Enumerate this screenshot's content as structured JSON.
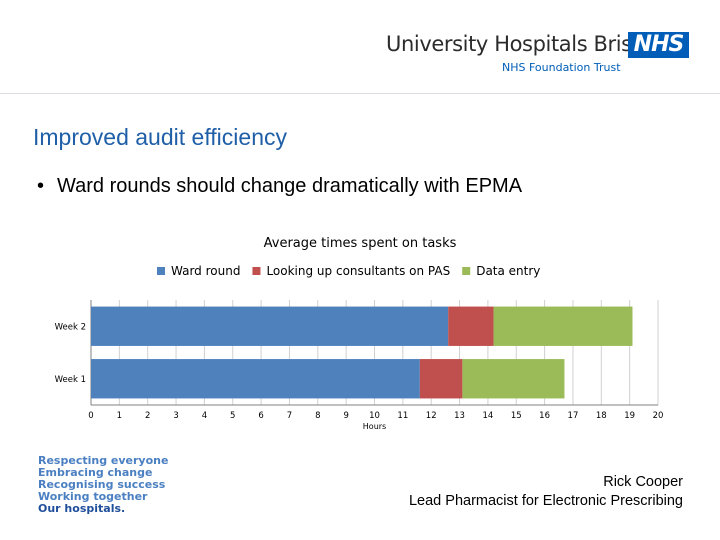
{
  "header": {
    "org_name": "University Hospitals Bristol",
    "nhs_logo": "NHS",
    "org_subtitle": "NHS Foundation Trust"
  },
  "slide": {
    "title": "Improved audit efficiency",
    "bullet": "Ward rounds should change dramatically with EPMA"
  },
  "colors": {
    "title_blue": "#1f5fa8",
    "nhs_blue": "#005eb8",
    "series_blue": "#4f81bd",
    "series_red": "#c0504d",
    "series_green": "#9bbb59"
  },
  "chart_data": {
    "type": "bar",
    "orientation": "horizontal",
    "stacked": true,
    "title": "Average times spent on tasks",
    "xlabel": "Hours",
    "ylabel": "",
    "xlim": [
      0,
      20
    ],
    "x_ticks": [
      0,
      1,
      2,
      3,
      4,
      5,
      6,
      7,
      8,
      9,
      10,
      11,
      12,
      13,
      14,
      15,
      16,
      17,
      18,
      19,
      20
    ],
    "categories": [
      "Week 2",
      "Week 1"
    ],
    "legend_position": "top",
    "grid": "vertical",
    "series": [
      {
        "name": "Ward round",
        "color": "#4f81bd",
        "values": [
          12.6,
          11.6
        ]
      },
      {
        "name": "Looking up consultants on PAS",
        "color": "#c0504d",
        "values": [
          1.6,
          1.5
        ]
      },
      {
        "name": "Data entry",
        "color": "#9bbb59",
        "values": [
          4.9,
          3.6
        ]
      }
    ]
  },
  "footer": {
    "values": [
      "Respecting everyone",
      "Embracing change",
      "Recognising success",
      "Working together",
      "Our hospitals."
    ],
    "presenter_name": "Rick Cooper",
    "presenter_role": "Lead Pharmacist for Electronic Prescribing"
  }
}
